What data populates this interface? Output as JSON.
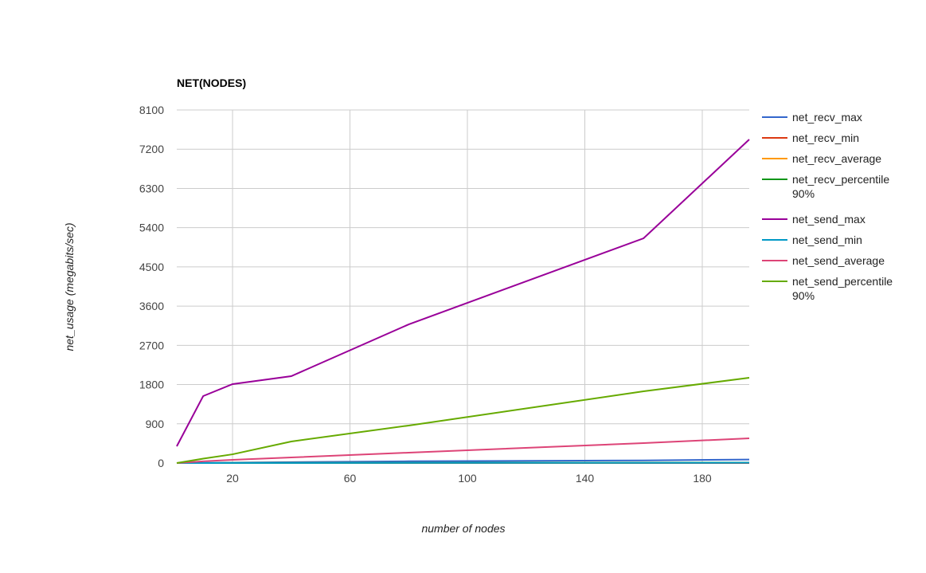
{
  "chart_data": {
    "type": "line",
    "title": "NET(NODES)",
    "xlabel": "number of nodes",
    "ylabel": "net_usage (megabits/sec)",
    "xlim": [
      1,
      196
    ],
    "ylim": [
      0,
      8100
    ],
    "xticks": [
      20,
      60,
      100,
      140,
      180
    ],
    "yticks": [
      0,
      900,
      1800,
      2700,
      3600,
      4500,
      5400,
      6300,
      7200,
      8100
    ],
    "grid": true,
    "legend_position": "right",
    "x": [
      1,
      10,
      20,
      40,
      80,
      160,
      196
    ],
    "series": [
      {
        "name": "net_recv_max",
        "color": "#3366cc",
        "values": [
          0,
          5,
          10,
          20,
          40,
          60,
          80
        ]
      },
      {
        "name": "net_recv_min",
        "color": "#dc3912",
        "values": [
          0,
          0,
          0,
          0,
          0,
          0,
          0
        ]
      },
      {
        "name": "net_recv_average",
        "color": "#ff9900",
        "values": [
          0,
          1,
          2,
          4,
          6,
          8,
          10
        ]
      },
      {
        "name": "net_recv_percentile 90%",
        "color": "#109618",
        "values": [
          0,
          1,
          2,
          3,
          5,
          7,
          9
        ]
      },
      {
        "name": "net_send_max",
        "color": "#990099",
        "values": [
          384,
          1536,
          1810,
          1993,
          3181,
          5156,
          7423
        ]
      },
      {
        "name": "net_send_min",
        "color": "#0099c6",
        "values": [
          0,
          1,
          2,
          3,
          4,
          5,
          6
        ]
      },
      {
        "name": "net_send_average",
        "color": "#dd4477",
        "values": [
          0,
          40,
          73,
          128,
          238,
          457,
          567
        ]
      },
      {
        "name": "net_send_percentile 90%",
        "color": "#66aa00",
        "values": [
          0,
          100,
          200,
          494,
          860,
          1645,
          1956
        ]
      }
    ]
  }
}
